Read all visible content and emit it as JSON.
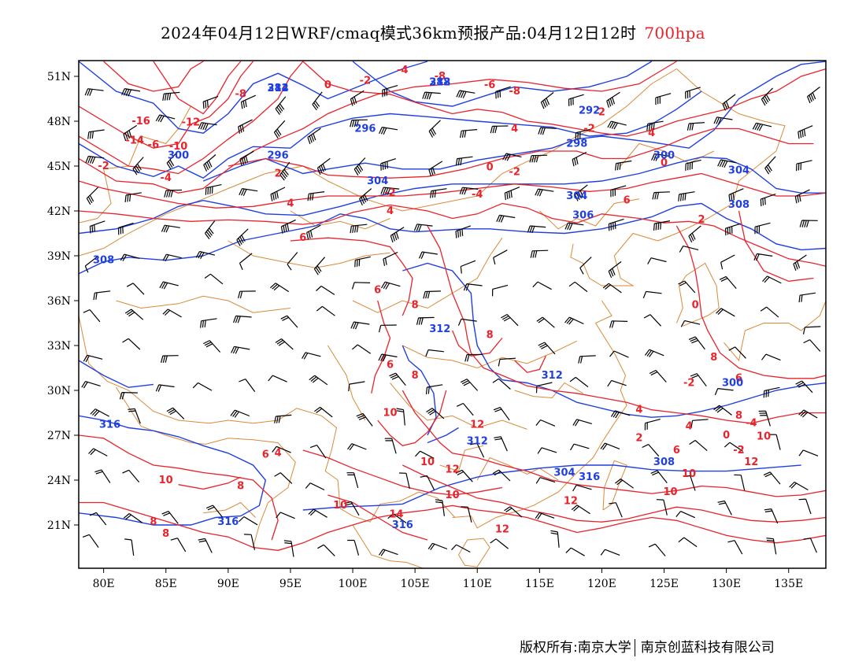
{
  "title": {
    "main": "2024年04月12日WRF/cmaq模式36km预报产品:04月12日12时",
    "level": "700hpa"
  },
  "colors": {
    "temperature": "#e8232b",
    "geopotential": "#1f3fe0",
    "boundary": "#d98a3a",
    "wind": "#000000",
    "level_text": "#e8232b"
  },
  "map": {
    "lon_range": [
      78,
      138
    ],
    "lat_range": [
      18,
      52
    ],
    "lon_ticks": [
      "80E",
      "85E",
      "90E",
      "95E",
      "100E",
      "105E",
      "110E",
      "115E",
      "120E",
      "125E",
      "130E",
      "135E"
    ],
    "lat_ticks": [
      "51N",
      "48N",
      "45N",
      "42N",
      "39N",
      "36N",
      "33N",
      "30N",
      "27N",
      "24N",
      "21N"
    ]
  },
  "temperature_labels": [
    "-4",
    "-8",
    "-2",
    "-8",
    "0",
    "-6",
    "-8",
    "-16",
    "-12",
    "-14",
    "-6",
    "-10",
    "-2",
    "-4",
    "2",
    "4",
    "6",
    "4",
    "0",
    "-2",
    "-4",
    "-2",
    "0",
    "4",
    "2",
    "-2",
    "4",
    "6",
    "6",
    "8",
    "8",
    "6",
    "8",
    "10",
    "12",
    "10",
    "12",
    "10",
    "14",
    "10",
    "12",
    "12",
    "10",
    "8",
    "10",
    "8",
    "8",
    "6",
    "4",
    "2",
    "0",
    "-2",
    "4",
    "6",
    "8",
    "10",
    "12",
    "8",
    "10",
    "6",
    "2",
    "4",
    "0",
    "-2",
    "-4"
  ],
  "height_labels": [
    "284",
    "288",
    "292",
    "296",
    "296",
    "298",
    "300",
    "300",
    "304",
    "304",
    "304",
    "306",
    "308",
    "308",
    "312",
    "312",
    "316",
    "316",
    "316",
    "312",
    "316",
    "300",
    "304",
    "308",
    "312",
    "312"
  ],
  "footer": {
    "copyright": "版权所有:南京大学",
    "company": "南京创蓝科技有限公司"
  }
}
